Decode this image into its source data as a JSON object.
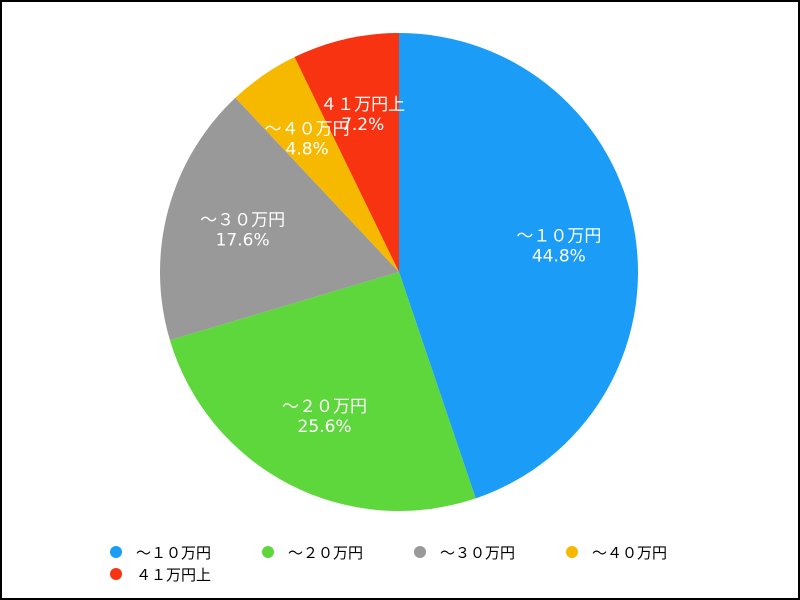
{
  "chart_data": {
    "type": "pie",
    "title": "",
    "slices": [
      {
        "label": "～１０万円",
        "value": 44.8,
        "display": "44.8%",
        "color": "#1a9cf7"
      },
      {
        "label": "～２０万円",
        "value": 25.6,
        "display": "25.6%",
        "color": "#5ed73c"
      },
      {
        "label": "～３０万円",
        "value": 17.6,
        "display": "17.6%",
        "color": "#999999"
      },
      {
        "label": "～４０万円",
        "value": 4.8,
        "display": "4.8%",
        "color": "#f7b800"
      },
      {
        "label": "４１万円上",
        "value": 7.2,
        "display": "7.2%",
        "color": "#f73311"
      }
    ],
    "legend_position": "bottom",
    "start": "top (12 o'clock), clockwise"
  }
}
